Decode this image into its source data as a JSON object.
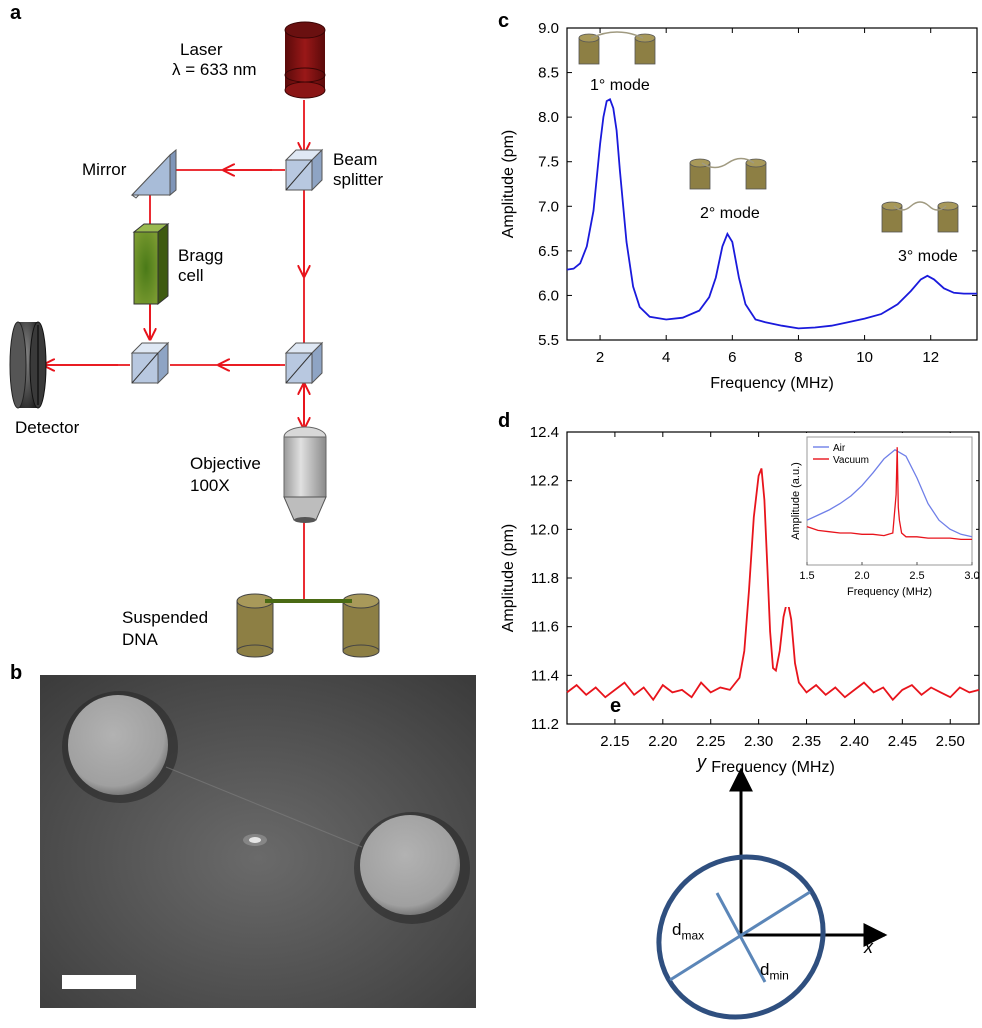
{
  "panel_labels": {
    "a": "a",
    "b": "b",
    "c": "c",
    "d": "d",
    "e": "e"
  },
  "setup": {
    "laser": "Laser",
    "wavelength": "λ = 633 nm",
    "mirror": "Mirror",
    "beam_splitter_1": "Beam",
    "beam_splitter_2": "splitter",
    "bragg_1": "Bragg",
    "bragg_2": "cell",
    "detector": "Detector",
    "objective_1": "Objective",
    "objective_2": "100X",
    "dna_1": "Suspended",
    "dna_2": "DNA",
    "colors": {
      "beam": "#e8141c",
      "laser": "#7a1010",
      "splitter": "#b8c8e0",
      "bragg": "#5a7a1e",
      "pillar": "#8d7f44",
      "dna": "#4a6a14"
    }
  },
  "chart_data": [
    {
      "id": "c",
      "type": "line",
      "xlabel": "Frequency (MHz)",
      "ylabel": "Amplitude (pm)",
      "xlim": [
        1.0,
        13.4
      ],
      "ylim": [
        5.5,
        9.0
      ],
      "xticks": [
        2,
        4,
        6,
        8,
        10,
        12
      ],
      "yticks": [
        5.5,
        6.0,
        6.5,
        7.0,
        7.5,
        8.0,
        8.5,
        9.0
      ],
      "ytick_labels": [
        "5.5",
        "6.0",
        "6.5",
        "7.0",
        "7.5",
        "8.0",
        "8.5",
        "9.0"
      ],
      "annotations": [
        "1° mode",
        "2° mode",
        "3° mode"
      ],
      "color": "#1a1adc",
      "series": [
        {
          "x": [
            1.0,
            1.2,
            1.4,
            1.6,
            1.8,
            2.0,
            2.1,
            2.2,
            2.3,
            2.4,
            2.5,
            2.6,
            2.8,
            3.0,
            3.2,
            3.5,
            4.0,
            4.5,
            5.0,
            5.3,
            5.5,
            5.7,
            5.85,
            6.0,
            6.2,
            6.4,
            6.7,
            7.0,
            7.5,
            8.0,
            8.5,
            9.0,
            9.5,
            10.0,
            10.5,
            11.0,
            11.4,
            11.7,
            11.9,
            12.1,
            12.4,
            12.7,
            13.0,
            13.4
          ],
          "values": [
            6.29,
            6.3,
            6.36,
            6.55,
            6.95,
            7.7,
            8.0,
            8.18,
            8.2,
            8.1,
            7.85,
            7.4,
            6.6,
            6.1,
            5.87,
            5.76,
            5.73,
            5.75,
            5.83,
            5.98,
            6.2,
            6.55,
            6.69,
            6.6,
            6.2,
            5.9,
            5.73,
            5.7,
            5.66,
            5.63,
            5.64,
            5.66,
            5.7,
            5.74,
            5.79,
            5.9,
            6.05,
            6.18,
            6.22,
            6.18,
            6.08,
            6.03,
            6.02,
            6.02
          ]
        }
      ]
    },
    {
      "id": "d",
      "type": "line",
      "xlabel": "Frequency (MHz)",
      "ylabel": "Amplitude (pm)",
      "xlim": [
        2.1,
        2.53
      ],
      "ylim": [
        11.2,
        12.4
      ],
      "xticks": [
        2.15,
        2.2,
        2.25,
        2.3,
        2.35,
        2.4,
        2.45,
        2.5
      ],
      "xtick_labels": [
        "2.15",
        "2.20",
        "2.25",
        "2.30",
        "2.35",
        "2.40",
        "2.45",
        "2.50"
      ],
      "yticks": [
        11.2,
        11.4,
        11.6,
        11.8,
        12.0,
        12.2,
        12.4
      ],
      "ytick_labels": [
        "11.2",
        "11.4",
        "11.6",
        "11.8",
        "12.0",
        "12.2",
        "12.4"
      ],
      "color": "#e8141c",
      "series": [
        {
          "x": [
            2.1,
            2.11,
            2.12,
            2.13,
            2.14,
            2.15,
            2.16,
            2.17,
            2.18,
            2.19,
            2.2,
            2.21,
            2.22,
            2.23,
            2.24,
            2.25,
            2.26,
            2.27,
            2.28,
            2.285,
            2.29,
            2.295,
            2.3,
            2.303,
            2.306,
            2.309,
            2.312,
            2.315,
            2.318,
            2.322,
            2.326,
            2.33,
            2.334,
            2.338,
            2.342,
            2.346,
            2.35,
            2.36,
            2.37,
            2.38,
            2.39,
            2.4,
            2.41,
            2.42,
            2.43,
            2.44,
            2.45,
            2.46,
            2.47,
            2.48,
            2.49,
            2.5,
            2.51,
            2.52,
            2.53
          ],
          "values": [
            11.33,
            11.36,
            11.32,
            11.35,
            11.31,
            11.34,
            11.37,
            11.32,
            11.35,
            11.3,
            11.36,
            11.33,
            11.34,
            11.31,
            11.37,
            11.33,
            11.35,
            11.34,
            11.39,
            11.5,
            11.75,
            12.05,
            12.22,
            12.25,
            12.12,
            11.85,
            11.58,
            11.43,
            11.42,
            11.5,
            11.64,
            11.71,
            11.63,
            11.45,
            11.37,
            11.35,
            11.33,
            11.36,
            11.32,
            11.35,
            11.31,
            11.34,
            11.37,
            11.33,
            11.35,
            11.3,
            11.34,
            11.36,
            11.32,
            11.35,
            11.33,
            11.31,
            11.35,
            11.33,
            11.34
          ]
        }
      ],
      "inset": {
        "type": "line",
        "xlabel": "Frequency (MHz)",
        "ylabel": "Amplitude (a.u.)",
        "xlim": [
          1.5,
          3.0
        ],
        "xticks": [
          1.5,
          2.0,
          2.5,
          3.0
        ],
        "xtick_labels": [
          "1.5",
          "2.0",
          "2.5",
          "3.0"
        ],
        "legend": "top-left",
        "series": [
          {
            "name": "Air",
            "color": "#6f7fe8",
            "x": [
              1.5,
              1.6,
              1.7,
              1.8,
              1.9,
              2.0,
              2.1,
              2.2,
              2.3,
              2.4,
              2.5,
              2.6,
              2.7,
              2.8,
              2.9,
              3.0
            ],
            "values": [
              0.35,
              0.39,
              0.43,
              0.48,
              0.54,
              0.62,
              0.72,
              0.83,
              0.9,
              0.85,
              0.68,
              0.48,
              0.35,
              0.28,
              0.24,
              0.22
            ]
          },
          {
            "name": "Vacuum",
            "color": "#e8141c",
            "x": [
              1.5,
              1.6,
              1.7,
              1.8,
              1.9,
              2.0,
              2.1,
              2.2,
              2.28,
              2.31,
              2.32,
              2.33,
              2.34,
              2.36,
              2.4,
              2.5,
              2.6,
              2.7,
              2.8,
              2.9,
              3.0
            ],
            "values": [
              0.3,
              0.27,
              0.26,
              0.25,
              0.25,
              0.24,
              0.24,
              0.23,
              0.25,
              0.55,
              0.92,
              0.45,
              0.35,
              0.25,
              0.22,
              0.22,
              0.21,
              0.21,
              0.21,
              0.2,
              0.2
            ]
          }
        ]
      }
    }
  ],
  "micrograph": {
    "caption": ""
  },
  "ellipse": {
    "x_axis": "x",
    "y_axis": "y",
    "dmax": "d",
    "dmax_sub": "max",
    "dmin": "d",
    "dmin_sub": "min",
    "color": "#2f4f7f"
  }
}
